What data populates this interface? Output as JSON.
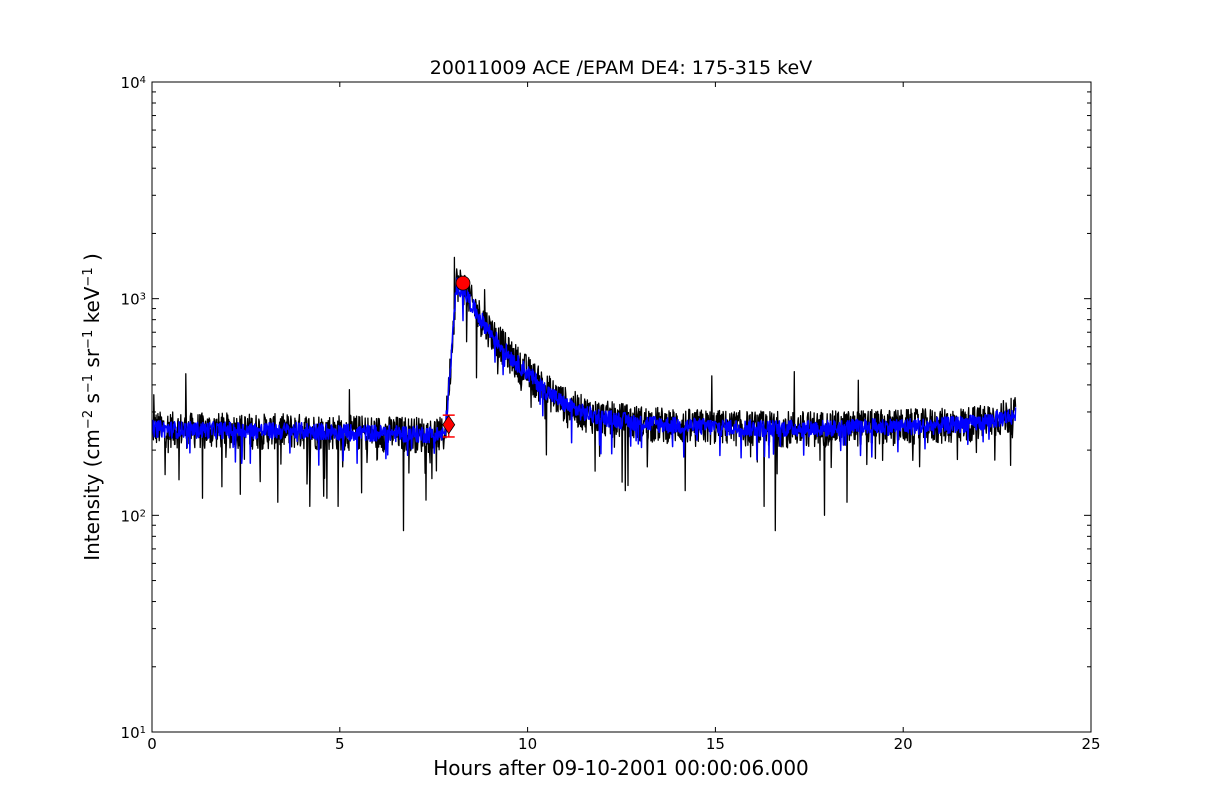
{
  "chart_data": {
    "type": "line",
    "title": "20011009 ACE /EPAM DE4: 175-315 keV",
    "xlabel": "Hours after 09-10-2001 00:00:06.000",
    "ylabel_parts": {
      "prefix": "Intensity (cm",
      "exp1": "−2",
      "s": " s",
      "exp2": "−1",
      "sr": " sr",
      "exp3": "−1",
      "kev": " keV",
      "exp4": "−1",
      "suffix": " )"
    },
    "xlim": [
      0,
      25
    ],
    "ylim": [
      10,
      10000
    ],
    "yscale": "log",
    "grid": false,
    "xticks": [
      0,
      5,
      10,
      15,
      20,
      25
    ],
    "xtick_labels": [
      "0",
      "5",
      "10",
      "15",
      "20",
      "25"
    ],
    "yticks": [
      10,
      100,
      1000,
      10000
    ],
    "ytick_base": "10",
    "ytick_exponents": [
      "1",
      "2",
      "3",
      "4"
    ],
    "series": [
      {
        "color": "#000000",
        "profile": [
          [
            0,
            255
          ],
          [
            1,
            250
          ],
          [
            2,
            250
          ],
          [
            3,
            248
          ],
          [
            4,
            248
          ],
          [
            5,
            245
          ],
          [
            6,
            242
          ],
          [
            7,
            240
          ],
          [
            7.8,
            238
          ],
          [
            7.95,
            500
          ],
          [
            8.1,
            1200
          ],
          [
            8.3,
            1150
          ],
          [
            8.6,
            900
          ],
          [
            9.0,
            720
          ],
          [
            9.5,
            560
          ],
          [
            10.0,
            460
          ],
          [
            10.5,
            380
          ],
          [
            11.0,
            330
          ],
          [
            11.5,
            300
          ],
          [
            12.0,
            285
          ],
          [
            13.0,
            270
          ],
          [
            14.0,
            262
          ],
          [
            15.0,
            258
          ],
          [
            16.0,
            255
          ],
          [
            17.0,
            255
          ],
          [
            18.0,
            255
          ],
          [
            19.0,
            258
          ],
          [
            20.0,
            260
          ],
          [
            21.0,
            262
          ],
          [
            22.0,
            270
          ],
          [
            23.0,
            295
          ]
        ],
        "spikes": [
          [
            0.05,
            360
          ],
          [
            0.9,
            450
          ],
          [
            1.35,
            120
          ],
          [
            2.35,
            125
          ],
          [
            3.35,
            115
          ],
          [
            4.2,
            110
          ],
          [
            4.65,
            120
          ],
          [
            4.95,
            110
          ],
          [
            5.25,
            380
          ],
          [
            6.7,
            85
          ],
          [
            8.05,
            1550
          ],
          [
            8.85,
            1100
          ],
          [
            9.2,
            450
          ],
          [
            10.5,
            190
          ],
          [
            11.8,
            160
          ],
          [
            12.6,
            130
          ],
          [
            14.2,
            130
          ],
          [
            14.9,
            440
          ],
          [
            16.3,
            110
          ],
          [
            16.6,
            85
          ],
          [
            17.1,
            460
          ],
          [
            17.9,
            100
          ],
          [
            18.5,
            115
          ],
          [
            18.8,
            420
          ]
        ]
      },
      {
        "color": "#0000ff",
        "profile": [
          [
            0,
            252
          ],
          [
            1,
            248
          ],
          [
            2,
            248
          ],
          [
            3,
            246
          ],
          [
            4,
            246
          ],
          [
            5,
            243
          ],
          [
            6,
            240
          ],
          [
            7,
            238
          ],
          [
            7.8,
            236
          ],
          [
            7.95,
            480
          ],
          [
            8.1,
            1150
          ],
          [
            8.3,
            1100
          ],
          [
            8.6,
            880
          ],
          [
            9.0,
            700
          ],
          [
            9.5,
            550
          ],
          [
            10.0,
            455
          ],
          [
            10.5,
            375
          ],
          [
            11.0,
            325
          ],
          [
            11.5,
            297
          ],
          [
            12.0,
            283
          ],
          [
            13.0,
            268
          ],
          [
            14.0,
            260
          ],
          [
            15.0,
            256
          ],
          [
            16.0,
            253
          ],
          [
            17.0,
            253
          ],
          [
            18.0,
            253
          ],
          [
            19.0,
            256
          ],
          [
            20.0,
            258
          ],
          [
            21.0,
            260
          ],
          [
            22.0,
            268
          ],
          [
            23.0,
            290
          ]
        ]
      }
    ],
    "markers": [
      {
        "shape": "diamond",
        "x": 7.9,
        "y": 262,
        "color": "#ff0000"
      },
      {
        "shape": "circle",
        "x": 8.28,
        "y": 1180,
        "color": "#ff0000"
      }
    ],
    "errorbar": {
      "x": 7.9,
      "y_low": 230,
      "y_high": 290,
      "color": "#ff0000"
    }
  }
}
